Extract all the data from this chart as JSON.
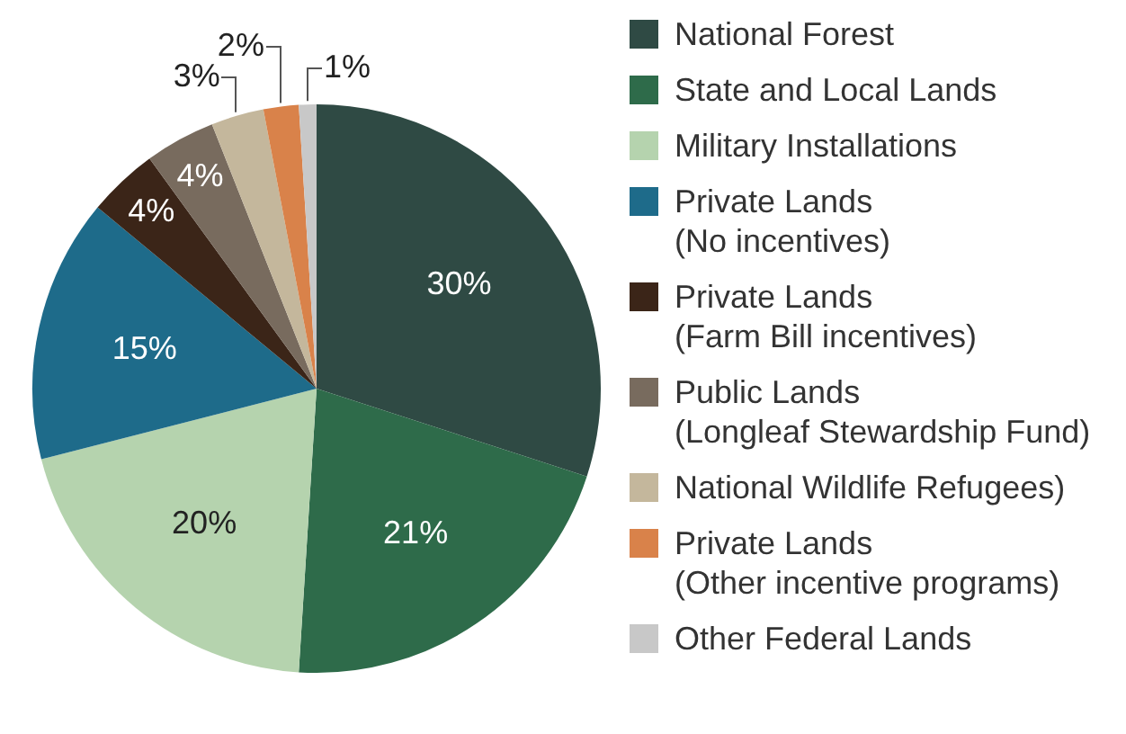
{
  "chart_data": {
    "type": "pie",
    "categories": [
      "National Forest",
      "State and Local Lands",
      "Military Installations",
      "Private Lands\n(No incentives)",
      "Private Lands\n(Farm Bill incentives)",
      "Public Lands\n(Longleaf Stewardship Fund)",
      "National Wildlife Refugees)",
      "Private Lands\n(Other incentive programs)",
      "Other Federal Lands"
    ],
    "values": [
      30,
      21,
      20,
      15,
      4,
      4,
      3,
      2,
      1
    ],
    "colors": [
      "#2f4a44",
      "#2e6b4a",
      "#b5d3ae",
      "#1e6b8a",
      "#3b2518",
      "#786b5e",
      "#c4b79c",
      "#d9824a",
      "#c8c8c8"
    ],
    "value_labels": [
      "30%",
      "21%",
      "20%",
      "15%",
      "4%",
      "4%",
      "3%",
      "2%",
      "1%"
    ],
    "legend": "right"
  }
}
